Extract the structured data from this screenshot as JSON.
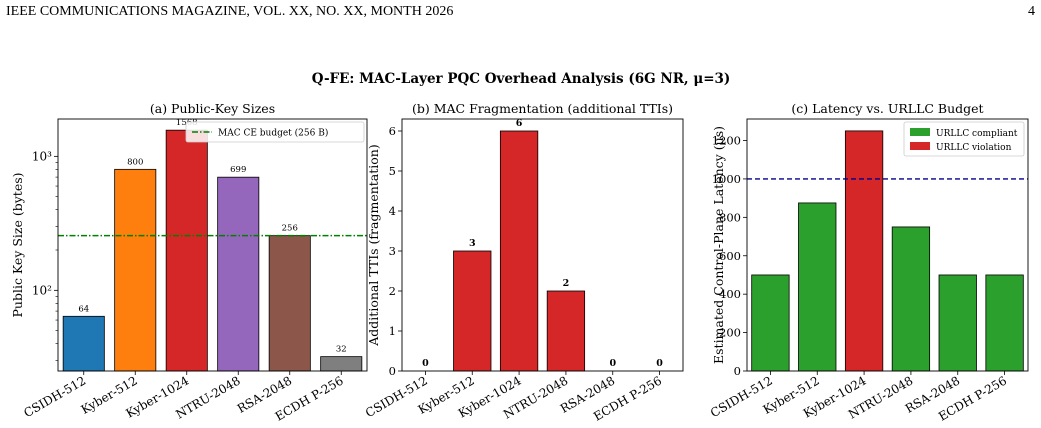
{
  "header": {
    "journal": "IEEE COMMUNICATIONS MAGAZINE, VOL. XX, NO. XX, MONTH 2026",
    "page_number": "4"
  },
  "figure_title": "Q-FE: MAC-Layer PQC Overhead Analysis (6G NR, μ=3)",
  "chart_data": [
    {
      "type": "bar",
      "title": "(a) Public-Key Sizes",
      "xlabel": "",
      "ylabel": "Public Key Size (bytes)",
      "yscale": "log",
      "ylim": [
        25,
        1900
      ],
      "yticks": [
        100,
        1000
      ],
      "ytick_labels": [
        "10²",
        "10³"
      ],
      "categories": [
        "CSIDH-512",
        "Kyber-512",
        "Kyber-1024",
        "NTRU-2048",
        "RSA-2048",
        "ECDH P-256"
      ],
      "values": [
        64,
        800,
        1568,
        699,
        256,
        32
      ],
      "data_labels": [
        "64",
        "800",
        "1568",
        "699",
        "256",
        "32"
      ],
      "bar_colors": [
        "#1f77b4",
        "#ff7f0e",
        "#d62728",
        "#9467bd",
        "#8c564b",
        "#7f7f7f"
      ],
      "reference_line": {
        "value": 256,
        "label": "MAC CE budget (256 B)",
        "color": "#008000",
        "style": "dash-dot"
      },
      "legend_placement": "top-right",
      "grid": false
    },
    {
      "type": "bar",
      "title": "(b) MAC Fragmentation (additional TTIs)",
      "xlabel": "",
      "ylabel": "Additional TTIs (fragmentation)",
      "ylim": [
        0,
        6.3
      ],
      "yticks": [
        0,
        1,
        2,
        3,
        4,
        5,
        6
      ],
      "categories": [
        "CSIDH-512",
        "Kyber-512",
        "Kyber-1024",
        "NTRU-2048",
        "RSA-2048",
        "ECDH P-256"
      ],
      "values": [
        0,
        3,
        6,
        2,
        0,
        0
      ],
      "data_labels": [
        "0",
        "3",
        "6",
        "2",
        "0",
        "0"
      ],
      "bar_color": "#d62728",
      "grid": false
    },
    {
      "type": "bar",
      "title": "(c) Latency vs. URLLC Budget",
      "xlabel": "",
      "ylabel": "Estimated Control-Plane Latency (µs)",
      "ylim": [
        0,
        1312
      ],
      "yticks": [
        0,
        200,
        400,
        600,
        800,
        1000,
        1200
      ],
      "categories": [
        "CSIDH-512",
        "Kyber-512",
        "Kyber-1024",
        "NTRU-2048",
        "RSA-2048",
        "ECDH P-256"
      ],
      "values": [
        500,
        875,
        1250,
        750,
        500,
        500
      ],
      "status": [
        "compliant",
        "compliant",
        "violation",
        "compliant",
        "compliant",
        "compliant"
      ],
      "colors": {
        "compliant": "#2ca02c",
        "violation": "#d62728",
        "budget_line": "#00008b"
      },
      "legend": [
        {
          "label": "URLLC compliant",
          "key": "compliant"
        },
        {
          "label": "URLLC violation",
          "key": "violation"
        }
      ],
      "reference_line": {
        "value": 1000,
        "style": "dashed"
      },
      "legend_placement": "top-right",
      "grid": false
    }
  ]
}
